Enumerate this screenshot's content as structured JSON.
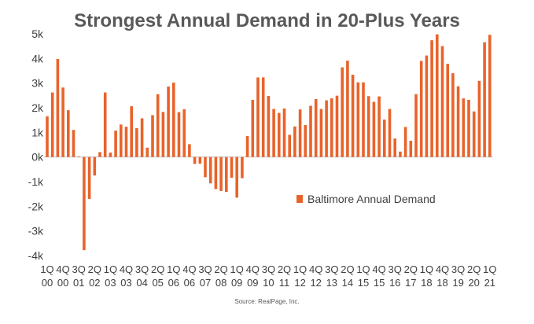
{
  "chart_data": {
    "type": "bar",
    "title": "Strongest Annual Demand in 20-Plus Years",
    "source": "Source: RealPage, Inc.",
    "legend": "Baltimore Annual Demand",
    "legend_position": "right-middle",
    "bar_color": "#E8632B",
    "grid": false,
    "ylim": [
      -4000,
      5000
    ],
    "y_ticks": [
      {
        "value": 5000,
        "label": "5k"
      },
      {
        "value": 4000,
        "label": "4k"
      },
      {
        "value": 3000,
        "label": "3k"
      },
      {
        "value": 2000,
        "label": "2k"
      },
      {
        "value": 1000,
        "label": "1k"
      },
      {
        "value": 0,
        "label": "0k"
      },
      {
        "value": -1000,
        "label": "-1k"
      },
      {
        "value": -2000,
        "label": "-2k"
      },
      {
        "value": -3000,
        "label": "-3k"
      },
      {
        "value": -4000,
        "label": "-4k"
      }
    ],
    "x_ticks": [
      {
        "index": 0,
        "line1": "1Q",
        "line2": "00"
      },
      {
        "index": 3,
        "line1": "4Q",
        "line2": "00"
      },
      {
        "index": 6,
        "line1": "3Q",
        "line2": "01"
      },
      {
        "index": 9,
        "line1": "2Q",
        "line2": "02"
      },
      {
        "index": 12,
        "line1": "1Q",
        "line2": "03"
      },
      {
        "index": 15,
        "line1": "4Q",
        "line2": "03"
      },
      {
        "index": 18,
        "line1": "3Q",
        "line2": "04"
      },
      {
        "index": 21,
        "line1": "2Q",
        "line2": "05"
      },
      {
        "index": 24,
        "line1": "1Q",
        "line2": "06"
      },
      {
        "index": 27,
        "line1": "4Q",
        "line2": "06"
      },
      {
        "index": 30,
        "line1": "3Q",
        "line2": "07"
      },
      {
        "index": 33,
        "line1": "2Q",
        "line2": "08"
      },
      {
        "index": 36,
        "line1": "1Q",
        "line2": "09"
      },
      {
        "index": 39,
        "line1": "4Q",
        "line2": "09"
      },
      {
        "index": 42,
        "line1": "3Q",
        "line2": "10"
      },
      {
        "index": 45,
        "line1": "2Q",
        "line2": "11"
      },
      {
        "index": 48,
        "line1": "1Q",
        "line2": "12"
      },
      {
        "index": 51,
        "line1": "4Q",
        "line2": "12"
      },
      {
        "index": 54,
        "line1": "3Q",
        "line2": "13"
      },
      {
        "index": 57,
        "line1": "2Q",
        "line2": "14"
      },
      {
        "index": 60,
        "line1": "1Q",
        "line2": "15"
      },
      {
        "index": 63,
        "line1": "4Q",
        "line2": "15"
      },
      {
        "index": 66,
        "line1": "3Q",
        "line2": "16"
      },
      {
        "index": 69,
        "line1": "2Q",
        "line2": "17"
      },
      {
        "index": 72,
        "line1": "1Q",
        "line2": "18"
      },
      {
        "index": 75,
        "line1": "4Q",
        "line2": "18"
      },
      {
        "index": 78,
        "line1": "3Q",
        "line2": "19"
      },
      {
        "index": 81,
        "line1": "2Q",
        "line2": "20"
      },
      {
        "index": 84,
        "line1": "1Q",
        "line2": "21"
      }
    ],
    "series": [
      {
        "values": [
          1650,
          2620,
          3980,
          2820,
          1900,
          1100,
          20,
          -3780,
          -1700,
          -750,
          200,
          2620,
          180,
          1070,
          1320,
          1230,
          2060,
          1170,
          1570,
          380,
          1700,
          2550,
          1830,
          2860,
          3020,
          1820,
          1940,
          520,
          -280,
          -270,
          -820,
          -1070,
          -1300,
          -1380,
          -1420,
          -840,
          -1650,
          -860,
          850,
          2320,
          3230,
          3230,
          2480,
          1950,
          1790,
          1970,
          900,
          1240,
          1930,
          1300,
          2080,
          2350,
          1950,
          2300,
          2380,
          2490,
          3640,
          3910,
          3340,
          3030,
          3030,
          2470,
          2240,
          2460,
          1520,
          1950,
          750,
          220,
          1220,
          660,
          2550,
          3900,
          4120,
          4740,
          4980,
          4500,
          3780,
          3400,
          2870,
          2380,
          2320,
          1850,
          3090,
          4660,
          4960
        ]
      }
    ]
  }
}
